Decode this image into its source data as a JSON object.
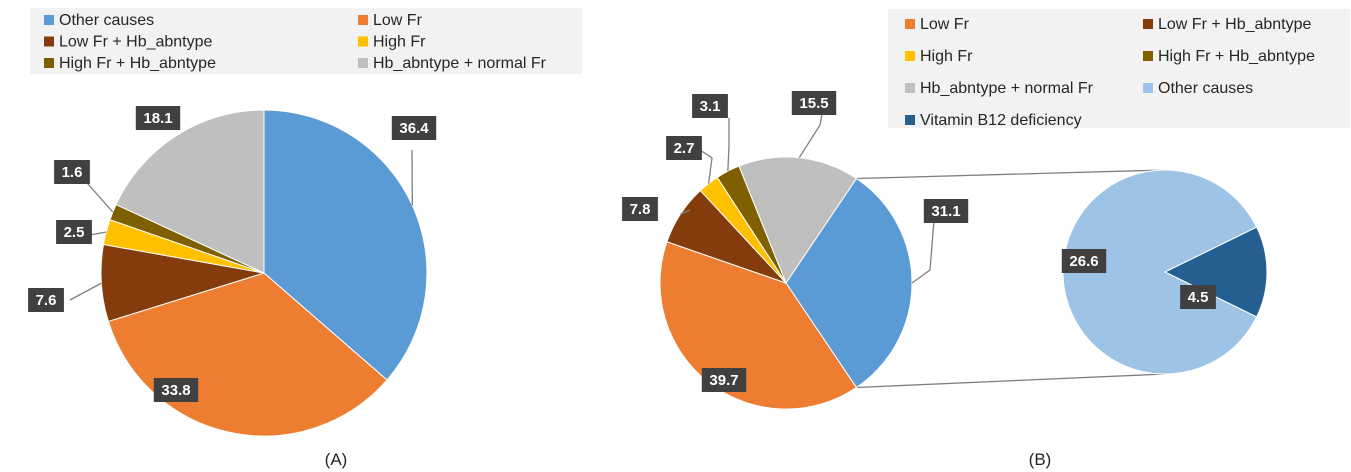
{
  "colors": {
    "Other causes": "#5B9BD5",
    "Low Fr": "#ED7D31",
    "Low Fr + Hb_abntype": "#843C0C",
    "High Fr": "#FFC000",
    "High Fr + Hb_abntype": "#7F6000",
    "Hb_abntype + normal Fr": "#BFBFBF",
    "Other causes (light)": "#9DC3E6",
    "Vitamin B12 deficiency": "#255E91",
    "label_box": "#404040",
    "leader": "#7F7F7F"
  },
  "chart_data": [
    {
      "type": "pie",
      "panel_label": "(A)",
      "legend": [
        "Other causes",
        "Low Fr",
        "Low Fr + Hb_abntype",
        "High Fr",
        "High Fr + Hb_abntype",
        "Hb_abntype + normal Fr"
      ],
      "slices": [
        {
          "name": "Other causes",
          "value": 36.4,
          "label": "36.4"
        },
        {
          "name": "Low Fr",
          "value": 33.8,
          "label": "33.8"
        },
        {
          "name": "Low Fr + Hb_abntype",
          "value": 7.6,
          "label": "7.6"
        },
        {
          "name": "High Fr",
          "value": 2.5,
          "label": "2.5"
        },
        {
          "name": "High Fr + Hb_abntype",
          "value": 1.6,
          "label": "1.6"
        },
        {
          "name": "Hb_abntype + normal Fr",
          "value": 18.1,
          "label": "18.1"
        }
      ]
    },
    {
      "type": "pie",
      "subtype": "pie-of-pie",
      "panel_label": "(B)",
      "legend": [
        "Low Fr",
        "Low Fr + Hb_abntype",
        "High Fr",
        "High Fr + Hb_abntype",
        "Hb_abntype + normal Fr",
        "Other causes",
        "Vitamin B12 deficiency"
      ],
      "slices": [
        {
          "name": "Other causes",
          "value": 31.1,
          "label": "31.1"
        },
        {
          "name": "Low Fr",
          "value": 39.7,
          "label": "39.7"
        },
        {
          "name": "Low Fr + Hb_abntype",
          "value": 7.8,
          "label": "7.8"
        },
        {
          "name": "High Fr",
          "value": 2.7,
          "label": "2.7"
        },
        {
          "name": "High Fr + Hb_abntype",
          "value": 3.1,
          "label": "3.1"
        },
        {
          "name": "Hb_abntype + normal Fr",
          "value": 15.5,
          "label": "15.5"
        }
      ],
      "breakout_of": "Other causes",
      "breakout_slices": [
        {
          "name": "Other causes",
          "value": 26.6,
          "label": "26.6"
        },
        {
          "name": "Vitamin B12 deficiency",
          "value": 4.5,
          "label": "4.5"
        }
      ]
    }
  ]
}
